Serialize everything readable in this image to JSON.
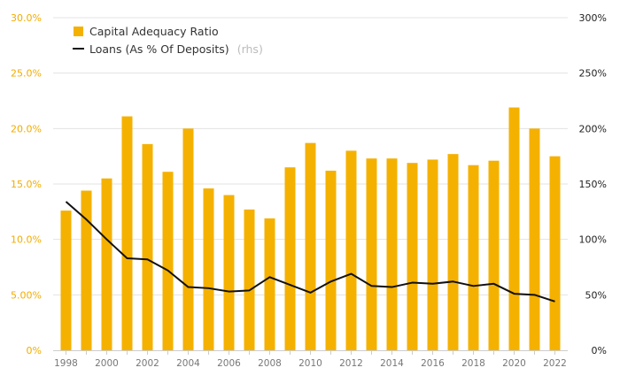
{
  "chart_data": {
    "type": "bar",
    "categories": [
      "1998",
      "1999",
      "2000",
      "2001",
      "2002",
      "2003",
      "2004",
      "2005",
      "2006",
      "2007",
      "2008",
      "2009",
      "2010",
      "2011",
      "2012",
      "2013",
      "2014",
      "2015",
      "2016",
      "2017",
      "2018",
      "2019",
      "2020",
      "2021",
      "2022"
    ],
    "x_tick_labels": [
      "1998",
      "2000",
      "2002",
      "2004",
      "2006",
      "2008",
      "2010",
      "2012",
      "2014",
      "2016",
      "2018",
      "2020",
      "2022"
    ],
    "series": [
      {
        "name": "Capital Adequacy Ratio",
        "type": "bar",
        "axis": "left",
        "color": "#f5b100",
        "values": [
          12.6,
          14.4,
          15.5,
          21.1,
          18.6,
          16.1,
          20.0,
          14.6,
          14.0,
          12.7,
          11.9,
          16.5,
          18.7,
          16.2,
          18.0,
          17.3,
          17.3,
          16.9,
          17.2,
          17.7,
          16.7,
          17.1,
          21.9,
          20.0,
          17.5
        ]
      },
      {
        "name": "Loans (As % Of Deposits)",
        "type": "line",
        "axis": "right",
        "color": "#111111",
        "values": [
          134,
          118,
          100,
          83,
          82,
          72,
          57,
          56,
          53,
          54,
          66,
          59,
          52,
          62,
          69,
          58,
          57,
          61,
          60,
          62,
          58,
          60,
          51,
          50,
          44
        ]
      }
    ],
    "y_left": {
      "ylim": [
        0,
        30
      ],
      "ticks": [
        "0%",
        "5.00%",
        "10.0%",
        "15.0%",
        "20.0%",
        "25.0%",
        "30.0%"
      ]
    },
    "y_right": {
      "ylim": [
        0,
        300
      ],
      "ticks": [
        "0%",
        "50%",
        "100%",
        "150%",
        "200%",
        "250%",
        "300%"
      ]
    },
    "legend": {
      "placement": "top-left",
      "bar_label": "Capital Adequacy Ratio",
      "line_label": "Loans (As % Of Deposits)",
      "line_suffix": "(rhs)"
    },
    "grid": true
  }
}
